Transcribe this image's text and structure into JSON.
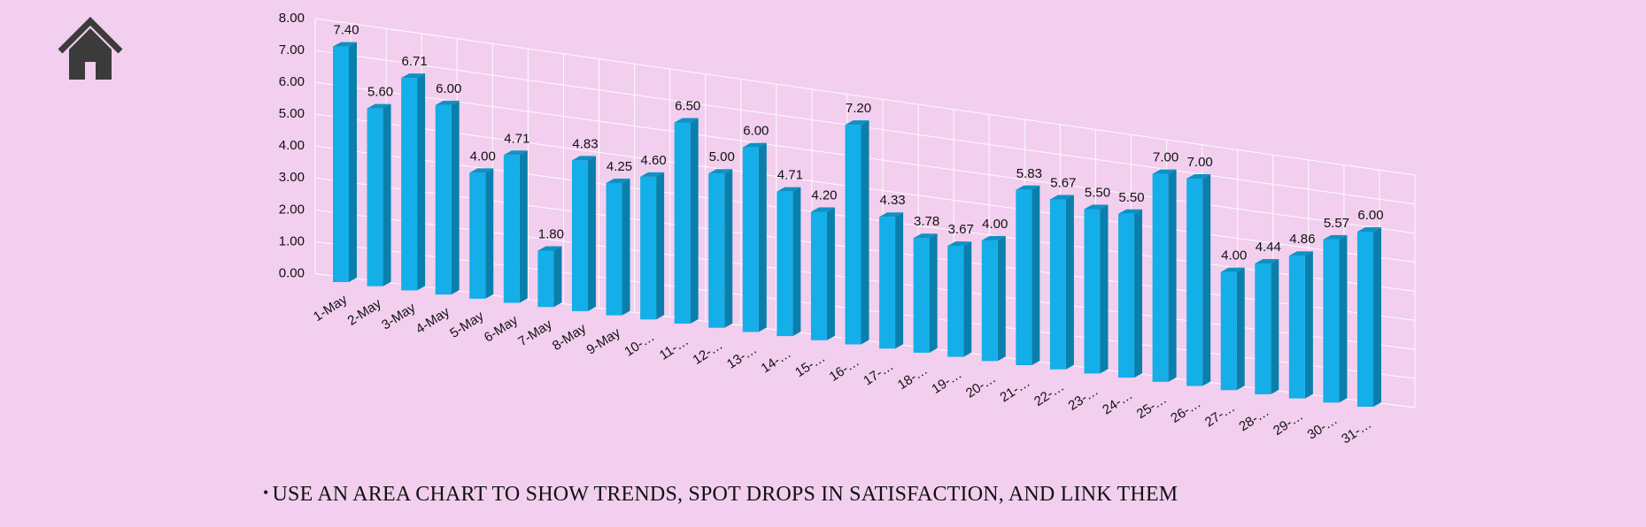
{
  "home_icon": "house-icon",
  "bullet_text": "USE AN AREA CHART TO SHOW TRENDS, SPOT DROPS IN SATISFACTION, AND LINK THEM",
  "chart_data": {
    "type": "bar",
    "style": "3d-column",
    "bar_color": "#14aee8",
    "bar_side_color": "#0a7fab",
    "bar_top_color": "#0d92c4",
    "grid": true,
    "legend": "none",
    "ylim": [
      0,
      8
    ],
    "yticks": [
      "0.00",
      "1.00",
      "2.00",
      "3.00",
      "4.00",
      "5.00",
      "6.00",
      "7.00",
      "8.00"
    ],
    "categories": [
      "1-May",
      "2-May",
      "3-May",
      "4-May",
      "5-May",
      "6-May",
      "7-May",
      "8-May",
      "9-May",
      "10-…",
      "11-…",
      "12-…",
      "13-…",
      "14-…",
      "15-…",
      "16-…",
      "17-…",
      "18-…",
      "19-…",
      "20-…",
      "21-…",
      "22-…",
      "23-…",
      "24-…",
      "25-…",
      "26-…",
      "27-…",
      "28-…",
      "29-…",
      "30-…",
      "31-…"
    ],
    "values": [
      7.4,
      5.6,
      6.71,
      6.0,
      4.0,
      4.71,
      1.8,
      4.83,
      4.25,
      4.6,
      6.5,
      5.0,
      6.0,
      4.71,
      4.2,
      7.2,
      4.33,
      3.78,
      3.67,
      4.0,
      5.83,
      5.67,
      5.5,
      5.5,
      7.0,
      7.0,
      4.0,
      4.44,
      4.86,
      5.57,
      6.0
    ],
    "data_labels": [
      "7.40",
      "5.60",
      "6.71",
      "6.00",
      "4.00",
      "4.71",
      "1.80",
      "4.83",
      "4.25",
      "4.60",
      "6.50",
      "5.00",
      "6.00",
      "4.71",
      "4.20",
      "7.20",
      "4.33",
      "3.78",
      "3.67",
      "4.00",
      "5.83",
      "5.67",
      "5.50",
      "5.50",
      "7.00",
      "7.00",
      "4.00",
      "4.44",
      "4.86",
      "5.57",
      "6.00"
    ]
  }
}
